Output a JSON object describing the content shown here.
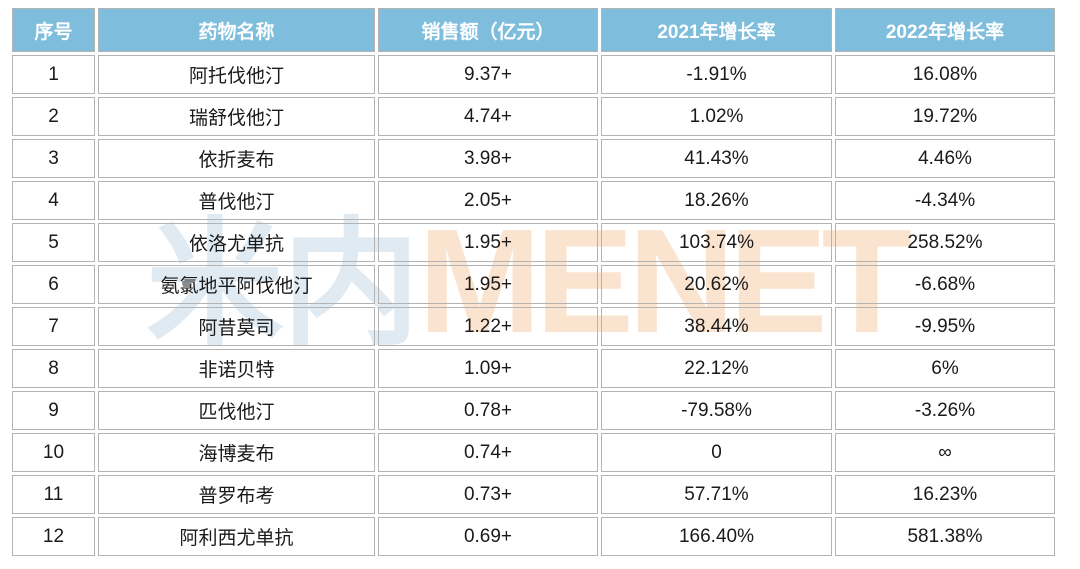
{
  "watermark": {
    "cn": "米内",
    "en": "MENET"
  },
  "colors": {
    "header_bg": "#7ebedc",
    "header_text": "#ffffff",
    "cell_border": "#b3b3b3",
    "body_text": "#1a1a1a",
    "watermark_cn": "#e0eaf2",
    "watermark_en": "#fbe4cf"
  },
  "table": {
    "columns": [
      {
        "key": "index",
        "label": "序号"
      },
      {
        "key": "name",
        "label": "药物名称"
      },
      {
        "key": "sales",
        "label": "销售额（亿元）"
      },
      {
        "key": "growth2021",
        "label": "2021年增长率"
      },
      {
        "key": "growth2022",
        "label": "2022年增长率"
      }
    ],
    "rows": [
      {
        "index": "1",
        "name": "阿托伐他汀",
        "sales": "9.37+",
        "growth2021": "-1.91%",
        "growth2022": "16.08%"
      },
      {
        "index": "2",
        "name": "瑞舒伐他汀",
        "sales": "4.74+",
        "growth2021": "1.02%",
        "growth2022": "19.72%"
      },
      {
        "index": "3",
        "name": "依折麦布",
        "sales": "3.98+",
        "growth2021": "41.43%",
        "growth2022": "4.46%"
      },
      {
        "index": "4",
        "name": "普伐他汀",
        "sales": "2.05+",
        "growth2021": "18.26%",
        "growth2022": "-4.34%"
      },
      {
        "index": "5",
        "name": "依洛尤单抗",
        "sales": "1.95+",
        "growth2021": "103.74%",
        "growth2022": "258.52%"
      },
      {
        "index": "6",
        "name": "氨氯地平阿伐他汀",
        "sales": "1.95+",
        "growth2021": "20.62%",
        "growth2022": "-6.68%"
      },
      {
        "index": "7",
        "name": "阿昔莫司",
        "sales": "1.22+",
        "growth2021": "38.44%",
        "growth2022": "-9.95%"
      },
      {
        "index": "8",
        "name": "非诺贝特",
        "sales": "1.09+",
        "growth2021": "22.12%",
        "growth2022": "6%"
      },
      {
        "index": "9",
        "name": "匹伐他汀",
        "sales": "0.78+",
        "growth2021": "-79.58%",
        "growth2022": "-3.26%"
      },
      {
        "index": "10",
        "name": "海博麦布",
        "sales": "0.74+",
        "growth2021": "0",
        "growth2022": "∞"
      },
      {
        "index": "11",
        "name": "普罗布考",
        "sales": "0.73+",
        "growth2021": "57.71%",
        "growth2022": "16.23%"
      },
      {
        "index": "12",
        "name": "阿利西尤单抗",
        "sales": "0.69+",
        "growth2021": "166.40%",
        "growth2022": "581.38%"
      }
    ]
  }
}
